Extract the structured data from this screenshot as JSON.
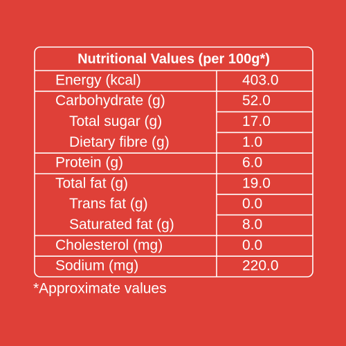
{
  "table": {
    "title": "Nutritional Values (per 100g*)",
    "rows": [
      {
        "label": "Energy (kcal)",
        "value": "403.0",
        "indent": false
      },
      {
        "label": "Carbohydrate (g)",
        "value": "52.0",
        "indent": false
      },
      {
        "label": "Total sugar (g)",
        "value": "17.0",
        "indent": true
      },
      {
        "label": "Dietary fibre (g)",
        "value": "1.0",
        "indent": true
      },
      {
        "label": "Protein (g)",
        "value": "6.0",
        "indent": false
      },
      {
        "label": "Total fat (g)",
        "value": "19.0",
        "indent": false
      },
      {
        "label": "Trans fat (g)",
        "value": "0.0",
        "indent": true
      },
      {
        "label": "Saturated fat (g)",
        "value": "8.0",
        "indent": true
      },
      {
        "label": "Cholesterol (mg)",
        "value": "0.0",
        "indent": false
      },
      {
        "label": "Sodium (mg)",
        "value": "220.0",
        "indent": false
      }
    ]
  },
  "footnote": "*Approximate values"
}
